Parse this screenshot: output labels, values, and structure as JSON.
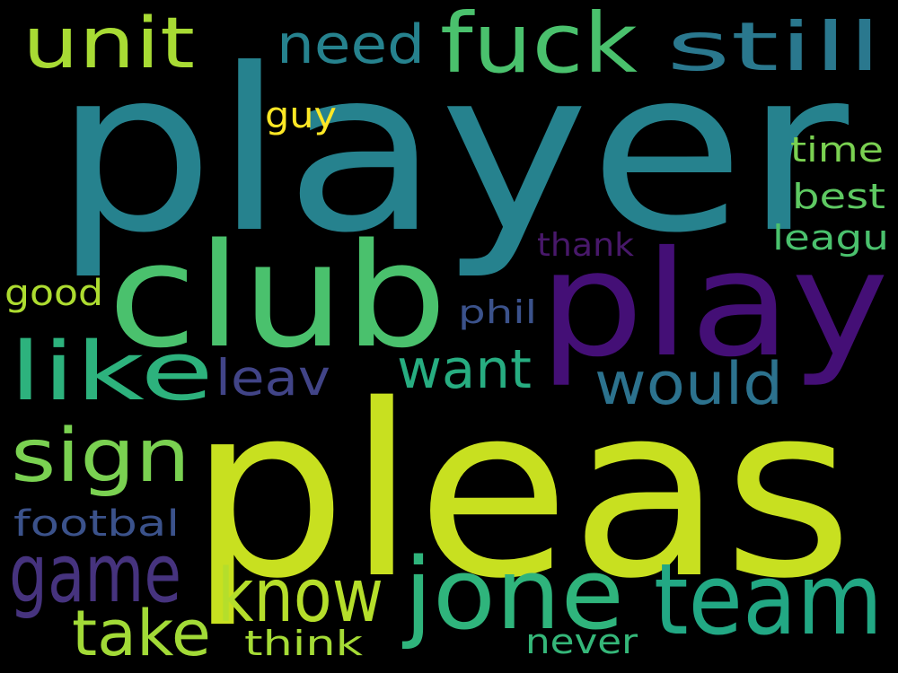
{
  "background": "#000000",
  "words": [
    {
      "text": "player",
      "color": "#26828e"
    },
    {
      "text": "pleas",
      "color": "#c8e020"
    },
    {
      "text": "club",
      "color": "#4ac16d"
    },
    {
      "text": "play",
      "color": "#440f76"
    },
    {
      "text": "jone",
      "color": "#2fb47c"
    },
    {
      "text": "team",
      "color": "#22a884"
    },
    {
      "text": "fuck",
      "color": "#4ac16d"
    },
    {
      "text": "unit",
      "color": "#a8db34"
    },
    {
      "text": "need",
      "color": "#26828e"
    },
    {
      "text": "still",
      "color": "#2a788e"
    },
    {
      "text": "like",
      "color": "#2db27d"
    },
    {
      "text": "game",
      "color": "#46337e"
    },
    {
      "text": "sign",
      "color": "#7ad151"
    },
    {
      "text": "know",
      "color": "#b5de2b"
    },
    {
      "text": "take",
      "color": "#a2da37"
    },
    {
      "text": "would",
      "color": "#2c728e"
    },
    {
      "text": "want",
      "color": "#27ad81"
    },
    {
      "text": "leav",
      "color": "#414487"
    },
    {
      "text": "guy",
      "color": "#fde725"
    },
    {
      "text": "time",
      "color": "#7ad151"
    },
    {
      "text": "best",
      "color": "#5ec962"
    },
    {
      "text": "leagu",
      "color": "#4ac16d"
    },
    {
      "text": "thank",
      "color": "#48186a"
    },
    {
      "text": "good",
      "color": "#addc30"
    },
    {
      "text": "phil",
      "color": "#3b528b"
    },
    {
      "text": "footbal",
      "color": "#3b528b"
    },
    {
      "text": "think",
      "color": "#a5db36"
    },
    {
      "text": "never",
      "color": "#35b779"
    }
  ]
}
